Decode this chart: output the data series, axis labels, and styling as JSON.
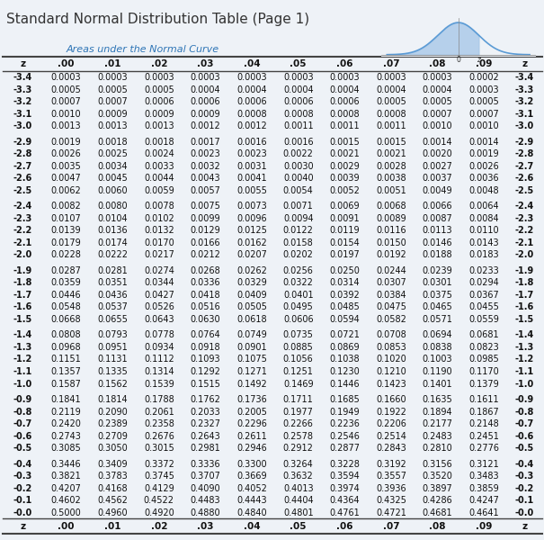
{
  "title": "Standard Normal Distribution Table (Page 1)",
  "subtitle": "Areas under the Normal Curve",
  "col_headers": [
    "z",
    ".00",
    ".01",
    ".02",
    ".03",
    ".04",
    ".05",
    ".06",
    ".07",
    ".08",
    ".09",
    "z"
  ],
  "rows": [
    [
      "-3.4",
      "0.0003",
      "0.0003",
      "0.0003",
      "0.0003",
      "0.0003",
      "0.0003",
      "0.0003",
      "0.0003",
      "0.0003",
      "0.0002",
      "-3.4"
    ],
    [
      "-3.3",
      "0.0005",
      "0.0005",
      "0.0005",
      "0.0004",
      "0.0004",
      "0.0004",
      "0.0004",
      "0.0004",
      "0.0004",
      "0.0003",
      "-3.3"
    ],
    [
      "-3.2",
      "0.0007",
      "0.0007",
      "0.0006",
      "0.0006",
      "0.0006",
      "0.0006",
      "0.0006",
      "0.0005",
      "0.0005",
      "0.0005",
      "-3.2"
    ],
    [
      "-3.1",
      "0.0010",
      "0.0009",
      "0.0009",
      "0.0009",
      "0.0008",
      "0.0008",
      "0.0008",
      "0.0008",
      "0.0007",
      "0.0007",
      "-3.1"
    ],
    [
      "-3.0",
      "0.0013",
      "0.0013",
      "0.0013",
      "0.0012",
      "0.0012",
      "0.0011",
      "0.0011",
      "0.0011",
      "0.0010",
      "0.0010",
      "-3.0"
    ],
    [
      "-2.9",
      "0.0019",
      "0.0018",
      "0.0018",
      "0.0017",
      "0.0016",
      "0.0016",
      "0.0015",
      "0.0015",
      "0.0014",
      "0.0014",
      "-2.9"
    ],
    [
      "-2.8",
      "0.0026",
      "0.0025",
      "0.0024",
      "0.0023",
      "0.0023",
      "0.0022",
      "0.0021",
      "0.0021",
      "0.0020",
      "0.0019",
      "-2.8"
    ],
    [
      "-2.7",
      "0.0035",
      "0.0034",
      "0.0033",
      "0.0032",
      "0.0031",
      "0.0030",
      "0.0029",
      "0.0028",
      "0.0027",
      "0.0026",
      "-2.7"
    ],
    [
      "-2.6",
      "0.0047",
      "0.0045",
      "0.0044",
      "0.0043",
      "0.0041",
      "0.0040",
      "0.0039",
      "0.0038",
      "0.0037",
      "0.0036",
      "-2.6"
    ],
    [
      "-2.5",
      "0.0062",
      "0.0060",
      "0.0059",
      "0.0057",
      "0.0055",
      "0.0054",
      "0.0052",
      "0.0051",
      "0.0049",
      "0.0048",
      "-2.5"
    ],
    [
      "-2.4",
      "0.0082",
      "0.0080",
      "0.0078",
      "0.0075",
      "0.0073",
      "0.0071",
      "0.0069",
      "0.0068",
      "0.0066",
      "0.0064",
      "-2.4"
    ],
    [
      "-2.3",
      "0.0107",
      "0.0104",
      "0.0102",
      "0.0099",
      "0.0096",
      "0.0094",
      "0.0091",
      "0.0089",
      "0.0087",
      "0.0084",
      "-2.3"
    ],
    [
      "-2.2",
      "0.0139",
      "0.0136",
      "0.0132",
      "0.0129",
      "0.0125",
      "0.0122",
      "0.0119",
      "0.0116",
      "0.0113",
      "0.0110",
      "-2.2"
    ],
    [
      "-2.1",
      "0.0179",
      "0.0174",
      "0.0170",
      "0.0166",
      "0.0162",
      "0.0158",
      "0.0154",
      "0.0150",
      "0.0146",
      "0.0143",
      "-2.1"
    ],
    [
      "-2.0",
      "0.0228",
      "0.0222",
      "0.0217",
      "0.0212",
      "0.0207",
      "0.0202",
      "0.0197",
      "0.0192",
      "0.0188",
      "0.0183",
      "-2.0"
    ],
    [
      "-1.9",
      "0.0287",
      "0.0281",
      "0.0274",
      "0.0268",
      "0.0262",
      "0.0256",
      "0.0250",
      "0.0244",
      "0.0239",
      "0.0233",
      "-1.9"
    ],
    [
      "-1.8",
      "0.0359",
      "0.0351",
      "0.0344",
      "0.0336",
      "0.0329",
      "0.0322",
      "0.0314",
      "0.0307",
      "0.0301",
      "0.0294",
      "-1.8"
    ],
    [
      "-1.7",
      "0.0446",
      "0.0436",
      "0.0427",
      "0.0418",
      "0.0409",
      "0.0401",
      "0.0392",
      "0.0384",
      "0.0375",
      "0.0367",
      "-1.7"
    ],
    [
      "-1.6",
      "0.0548",
      "0.0537",
      "0.0526",
      "0.0516",
      "0.0505",
      "0.0495",
      "0.0485",
      "0.0475",
      "0.0465",
      "0.0455",
      "-1.6"
    ],
    [
      "-1.5",
      "0.0668",
      "0.0655",
      "0.0643",
      "0.0630",
      "0.0618",
      "0.0606",
      "0.0594",
      "0.0582",
      "0.0571",
      "0.0559",
      "-1.5"
    ],
    [
      "-1.4",
      "0.0808",
      "0.0793",
      "0.0778",
      "0.0764",
      "0.0749",
      "0.0735",
      "0.0721",
      "0.0708",
      "0.0694",
      "0.0681",
      "-1.4"
    ],
    [
      "-1.3",
      "0.0968",
      "0.0951",
      "0.0934",
      "0.0918",
      "0.0901",
      "0.0885",
      "0.0869",
      "0.0853",
      "0.0838",
      "0.0823",
      "-1.3"
    ],
    [
      "-1.2",
      "0.1151",
      "0.1131",
      "0.1112",
      "0.1093",
      "0.1075",
      "0.1056",
      "0.1038",
      "0.1020",
      "0.1003",
      "0.0985",
      "-1.2"
    ],
    [
      "-1.1",
      "0.1357",
      "0.1335",
      "0.1314",
      "0.1292",
      "0.1271",
      "0.1251",
      "0.1230",
      "0.1210",
      "0.1190",
      "0.1170",
      "-1.1"
    ],
    [
      "-1.0",
      "0.1587",
      "0.1562",
      "0.1539",
      "0.1515",
      "0.1492",
      "0.1469",
      "0.1446",
      "0.1423",
      "0.1401",
      "0.1379",
      "-1.0"
    ],
    [
      "-0.9",
      "0.1841",
      "0.1814",
      "0.1788",
      "0.1762",
      "0.1736",
      "0.1711",
      "0.1685",
      "0.1660",
      "0.1635",
      "0.1611",
      "-0.9"
    ],
    [
      "-0.8",
      "0.2119",
      "0.2090",
      "0.2061",
      "0.2033",
      "0.2005",
      "0.1977",
      "0.1949",
      "0.1922",
      "0.1894",
      "0.1867",
      "-0.8"
    ],
    [
      "-0.7",
      "0.2420",
      "0.2389",
      "0.2358",
      "0.2327",
      "0.2296",
      "0.2266",
      "0.2236",
      "0.2206",
      "0.2177",
      "0.2148",
      "-0.7"
    ],
    [
      "-0.6",
      "0.2743",
      "0.2709",
      "0.2676",
      "0.2643",
      "0.2611",
      "0.2578",
      "0.2546",
      "0.2514",
      "0.2483",
      "0.2451",
      "-0.6"
    ],
    [
      "-0.5",
      "0.3085",
      "0.3050",
      "0.3015",
      "0.2981",
      "0.2946",
      "0.2912",
      "0.2877",
      "0.2843",
      "0.2810",
      "0.2776",
      "-0.5"
    ],
    [
      "-0.4",
      "0.3446",
      "0.3409",
      "0.3372",
      "0.3336",
      "0.3300",
      "0.3264",
      "0.3228",
      "0.3192",
      "0.3156",
      "0.3121",
      "-0.4"
    ],
    [
      "-0.3",
      "0.3821",
      "0.3783",
      "0.3745",
      "0.3707",
      "0.3669",
      "0.3632",
      "0.3594",
      "0.3557",
      "0.3520",
      "0.3483",
      "-0.3"
    ],
    [
      "-0.2",
      "0.4207",
      "0.4168",
      "0.4129",
      "0.4090",
      "0.4052",
      "0.4013",
      "0.3974",
      "0.3936",
      "0.3897",
      "0.3859",
      "-0.2"
    ],
    [
      "-0.1",
      "0.4602",
      "0.4562",
      "0.4522",
      "0.4483",
      "0.4443",
      "0.4404",
      "0.4364",
      "0.4325",
      "0.4286",
      "0.4247",
      "-0.1"
    ],
    [
      "-0.0",
      "0.5000",
      "0.4960",
      "0.4920",
      "0.4880",
      "0.4840",
      "0.4801",
      "0.4761",
      "0.4721",
      "0.4681",
      "0.4641",
      "-0.0"
    ]
  ],
  "group_ends": [
    4,
    9,
    14,
    19,
    24,
    29
  ],
  "bg_color": "#eef2f7",
  "title_bg": "#dce6f1",
  "title_color": "#333333",
  "subtitle_color": "#2e75b6",
  "text_color": "#111111",
  "header_text_color": "#111111",
  "line_color": "#444444",
  "bell_curve_color": "#5b9bd5",
  "bell_fill_color": "#a8c8e8"
}
